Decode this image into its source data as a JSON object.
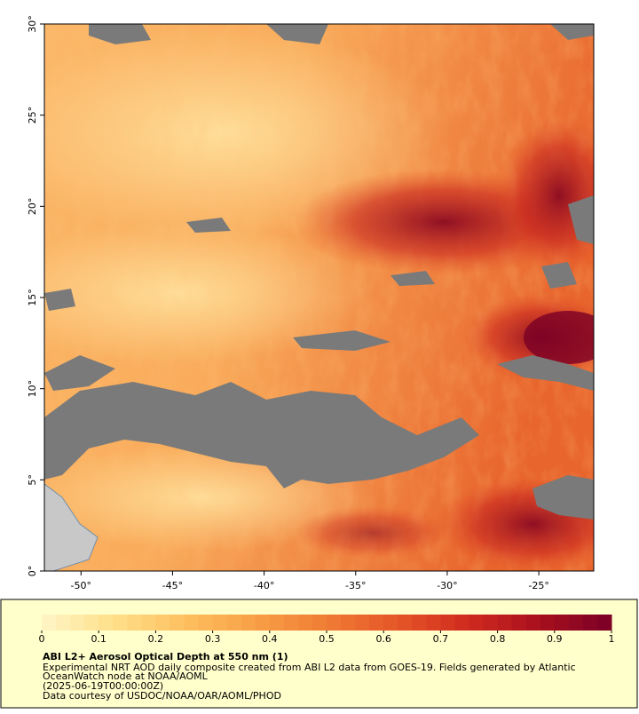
{
  "map": {
    "xlim": [
      -52,
      -22
    ],
    "ylim": [
      0,
      30
    ],
    "xticks": [
      {
        "value": -50,
        "label": "-50°"
      },
      {
        "value": -45,
        "label": "-45°"
      },
      {
        "value": -40,
        "label": "-40°"
      },
      {
        "value": -35,
        "label": "-35°"
      },
      {
        "value": -30,
        "label": "-30°"
      },
      {
        "value": -25,
        "label": "-25°"
      }
    ],
    "yticks": [
      {
        "value": 0,
        "label": "0°"
      },
      {
        "value": 5,
        "label": "5°"
      },
      {
        "value": 10,
        "label": "10°"
      },
      {
        "value": 15,
        "label": "15°"
      },
      {
        "value": 20,
        "label": "20°"
      },
      {
        "value": 25,
        "label": "25°"
      },
      {
        "value": 30,
        "label": "30°"
      }
    ]
  },
  "colorbar": {
    "lim": [
      0,
      1
    ],
    "ticks": [
      0,
      0.1,
      0.2,
      0.3,
      0.4,
      0.5,
      0.6,
      0.7,
      0.8,
      0.9,
      1
    ],
    "colors": [
      "#fff5c8",
      "#ffe08a",
      "#fdc060",
      "#f8a046",
      "#f07c35",
      "#e55528",
      "#d02a1e",
      "#a80f1e",
      "#7a0026"
    ]
  },
  "legend": {
    "title": "ABI L2+ Aerosol Optical Depth at 550 nm (1)",
    "lines": [
      "Experimental NRT AOD daily composite created from ABI L2 data from GOES-19. Fields generated by Atlantic",
      "OceanWatch node at NOAA/AOML",
      "(2025-06-19T00:00:00Z)",
      "Data courtesy of USDOC/NOAA/OAR/AOML/PHOD"
    ]
  }
}
